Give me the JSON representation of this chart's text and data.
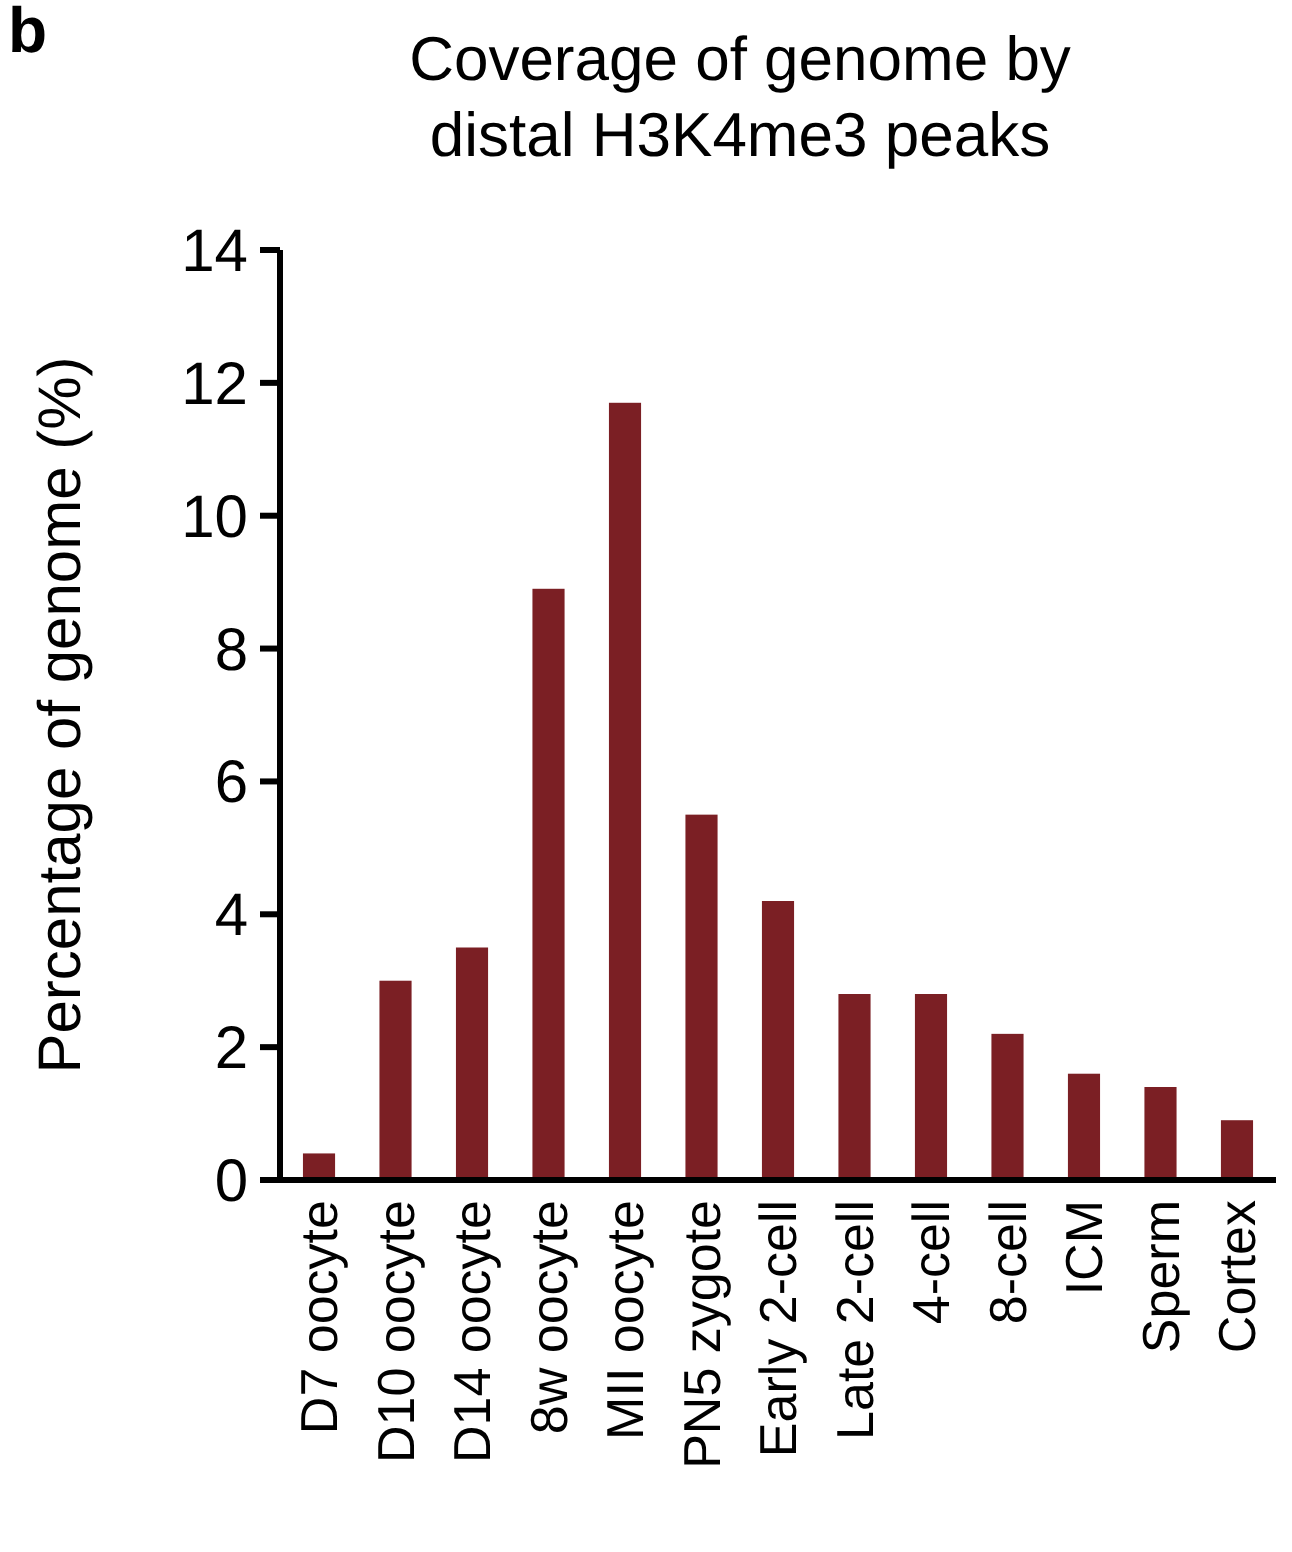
{
  "chart_data": {
    "type": "bar",
    "title": "Coverage of genome by distal H3K4me3 peaks",
    "ylabel": "Percentage of genome (%)",
    "annotations": [
      "b"
    ],
    "categories": [
      "D7 oocyte",
      "D10 oocyte",
      "D14 oocyte",
      "8w oocyte",
      "MII oocyte",
      "PN5 zygote",
      "Early 2-cell",
      "Late 2-cell",
      "4-cell",
      "8-cell",
      "ICM",
      "Sperm",
      "Cortex"
    ],
    "values": [
      0.4,
      3.0,
      3.5,
      8.9,
      11.7,
      5.5,
      4.2,
      2.8,
      2.8,
      2.2,
      1.6,
      1.4,
      0.9
    ],
    "color": "#7b1f24",
    "ylim": [
      0,
      14
    ],
    "yticks": [
      0,
      2,
      4,
      6,
      8,
      10,
      12,
      14
    ],
    "grid": false
  }
}
